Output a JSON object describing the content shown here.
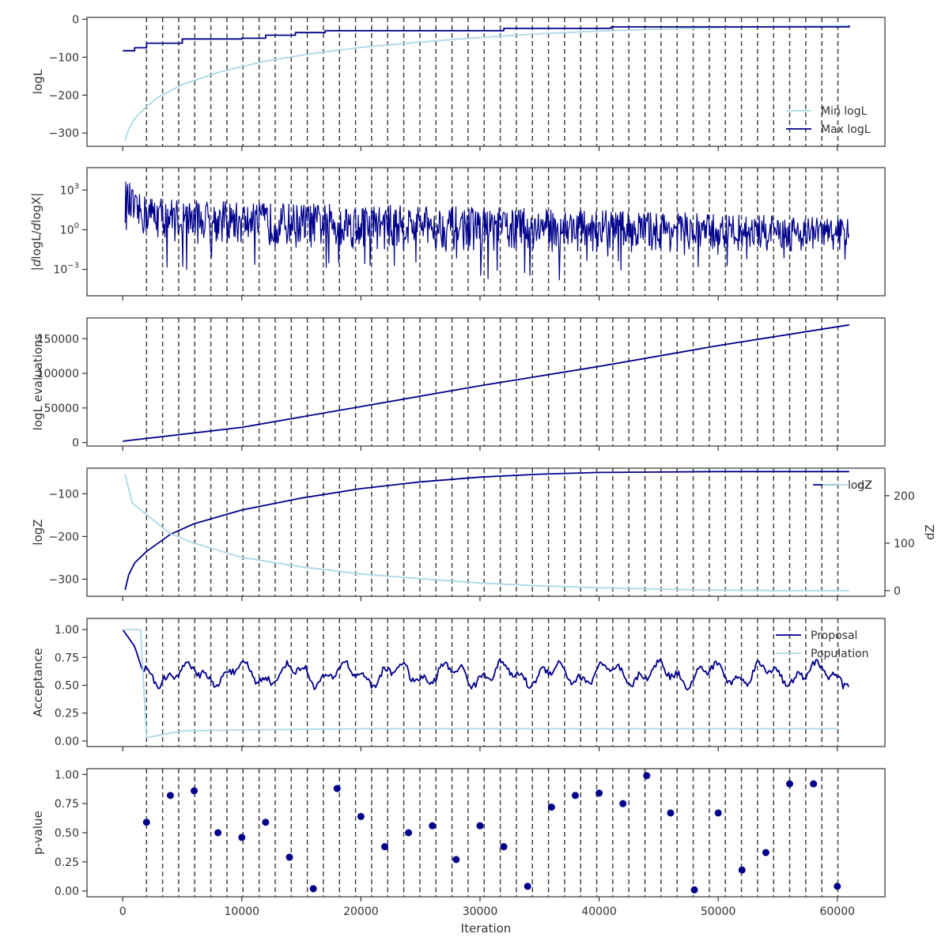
{
  "colors": {
    "dark": "#00008b",
    "light": "#add8e6",
    "vline": "#444444",
    "frame": "#333333"
  },
  "x_axis": {
    "label": "Iteration",
    "ticks": [
      0,
      10000,
      20000,
      30000,
      40000,
      50000,
      60000
    ],
    "range": [
      -3000,
      64000
    ]
  },
  "vlines": [
    2000,
    3350,
    4700,
    6050,
    7400,
    8750,
    10100,
    11450,
    12800,
    14150,
    15500,
    16850,
    18200,
    19550,
    20900,
    22250,
    23600,
    24950,
    26300,
    27650,
    29000,
    30350,
    31700,
    33050,
    34400,
    35750,
    37100,
    38450,
    39800,
    41150,
    42500,
    43850,
    45200,
    46550,
    47900,
    49250,
    50600,
    51950,
    53300,
    54650,
    56000,
    57350,
    58700,
    60050
  ],
  "chart_data": [
    {
      "type": "line",
      "ylabel": "logL",
      "yticks": [
        0,
        -100,
        -200,
        -300
      ],
      "ylim": [
        -335,
        5
      ],
      "legend_position": "lower-right",
      "series": [
        {
          "name": "Min logL",
          "color": "light",
          "style": "curve",
          "x": [
            200,
            500,
            1000,
            2000,
            3000,
            5000,
            8000,
            12000,
            16000,
            20000,
            25000,
            30000,
            35000,
            40000,
            45000,
            50000,
            55000,
            61000
          ],
          "y": [
            -320,
            -290,
            -262,
            -230,
            -205,
            -172,
            -140,
            -110,
            -90,
            -74,
            -60,
            -48,
            -38,
            -31,
            -26,
            -22,
            -19,
            -17
          ]
        },
        {
          "name": "Max logL",
          "color": "dark",
          "style": "step",
          "x": [
            0,
            1000,
            2000,
            5000,
            10000,
            12000,
            14500,
            17000,
            30000,
            32000,
            41000,
            61000
          ],
          "y": [
            -83,
            -75,
            -63,
            -52,
            -50,
            -42,
            -35,
            -30,
            -30,
            -24,
            -20,
            -16
          ]
        }
      ]
    },
    {
      "type": "line",
      "ylabel": "|dlogL/dlogX|",
      "yscale": "log",
      "yticks": [
        1000,
        1,
        0.001
      ],
      "yticklabels": [
        "10^3",
        "10^0",
        "10^-3"
      ],
      "ylim": [
        1e-05,
        50000
      ],
      "envelope": {
        "x": [
          0,
          1000,
          5000,
          10000,
          20000,
          30000,
          40000,
          50000,
          61000
        ],
        "upper": [
          8000,
          500,
          200,
          120,
          80,
          50,
          30,
          15,
          8
        ],
        "lower": [
          1,
          0.3,
          0.1,
          0.05,
          0.03,
          0.02,
          0.02,
          0.02,
          0.02
        ]
      },
      "series": [
        {
          "color": "dark",
          "style": "noise"
        }
      ]
    },
    {
      "type": "line",
      "ylabel": "logL evaluations",
      "yticks": [
        0,
        50000,
        100000,
        150000
      ],
      "ylim": [
        -5000,
        180000
      ],
      "series": [
        {
          "color": "dark",
          "x": [
            0,
            10000,
            20000,
            30000,
            40000,
            50000,
            61000
          ],
          "y": [
            2000,
            22000,
            52000,
            82000,
            110000,
            140000,
            170000
          ]
        }
      ]
    },
    {
      "type": "line",
      "ylabel": "logZ",
      "ylabel_right": "dZ",
      "yticks": [
        -100,
        -200,
        -300
      ],
      "ylim": [
        -340,
        -40
      ],
      "yticks_right": [
        0,
        100,
        200
      ],
      "ylim_right": [
        -12,
        258
      ],
      "legend_labels": [
        "logZ",
        "dZ"
      ],
      "legend_position": "top-right",
      "series": [
        {
          "name": "logZ",
          "color": "dark",
          "axis": "left",
          "x": [
            200,
            500,
            1000,
            2000,
            4000,
            6000,
            10000,
            15000,
            20000,
            25000,
            30000,
            35000,
            40000,
            45000,
            50000,
            55000,
            61000
          ],
          "y": [
            -325,
            -290,
            -262,
            -235,
            -195,
            -170,
            -138,
            -110,
            -88,
            -72,
            -61,
            -54,
            -50,
            -49,
            -48,
            -48,
            -48
          ]
        },
        {
          "name": "dZ",
          "color": "light",
          "axis": "right",
          "x": [
            200,
            800,
            2000,
            4000,
            6000,
            10000,
            15000,
            20000,
            25000,
            30000,
            35000,
            40000,
            45000,
            50000,
            55000,
            61000
          ],
          "y": [
            245,
            185,
            160,
            120,
            100,
            70,
            50,
            35,
            25,
            16,
            10,
            6,
            3,
            1,
            0,
            0
          ]
        }
      ]
    },
    {
      "type": "line",
      "ylabel": "Acceptance",
      "yticks": [
        1.0,
        0.75,
        0.5,
        0.25,
        0.0
      ],
      "yticklabels": [
        "1.00",
        "0.75",
        "0.50",
        "0.25",
        "0.00"
      ],
      "ylim": [
        -0.05,
        1.1
      ],
      "legend_position": "top-right",
      "series": [
        {
          "name": "Proposal",
          "color": "dark",
          "style": "wavy",
          "x": [
            0,
            1000,
            1600,
            2000,
            61000
          ],
          "y": [
            1.0,
            0.85,
            0.65,
            0.6,
            0.6
          ],
          "amplitude": 0.12
        },
        {
          "name": "Population",
          "color": "light",
          "x": [
            0,
            1500,
            2000,
            3000,
            5000,
            10000,
            20000,
            30000,
            40000,
            50000,
            60000
          ],
          "y": [
            1.0,
            1.0,
            0.03,
            0.05,
            0.09,
            0.1,
            0.11,
            0.11,
            0.11,
            0.11,
            0.11
          ]
        }
      ]
    },
    {
      "type": "scatter",
      "ylabel": "p-value",
      "yticks": [
        1.0,
        0.75,
        0.5,
        0.25,
        0.0
      ],
      "yticklabels": [
        "1.00",
        "0.75",
        "0.50",
        "0.25",
        "0.00"
      ],
      "ylim": [
        -0.05,
        1.05
      ],
      "series": [
        {
          "color": "dark",
          "x": [
            2000,
            4000,
            6000,
            8000,
            10000,
            12000,
            14000,
            16000,
            18000,
            20000,
            22000,
            24000,
            26000,
            28000,
            30000,
            32000,
            34000,
            36000,
            38000,
            40000,
            42000,
            44000,
            46000,
            48000,
            50000,
            52000,
            54000,
            56000,
            58000,
            60000
          ],
          "y": [
            0.59,
            0.82,
            0.86,
            0.5,
            0.46,
            0.59,
            0.29,
            0.02,
            0.88,
            0.64,
            0.38,
            0.5,
            0.56,
            0.27,
            0.56,
            0.38,
            0.04,
            0.72,
            0.82,
            0.84,
            0.75,
            0.99,
            0.67,
            0.01,
            0.67,
            0.18,
            0.33,
            0.92,
            0.92,
            0.04
          ]
        }
      ]
    }
  ]
}
